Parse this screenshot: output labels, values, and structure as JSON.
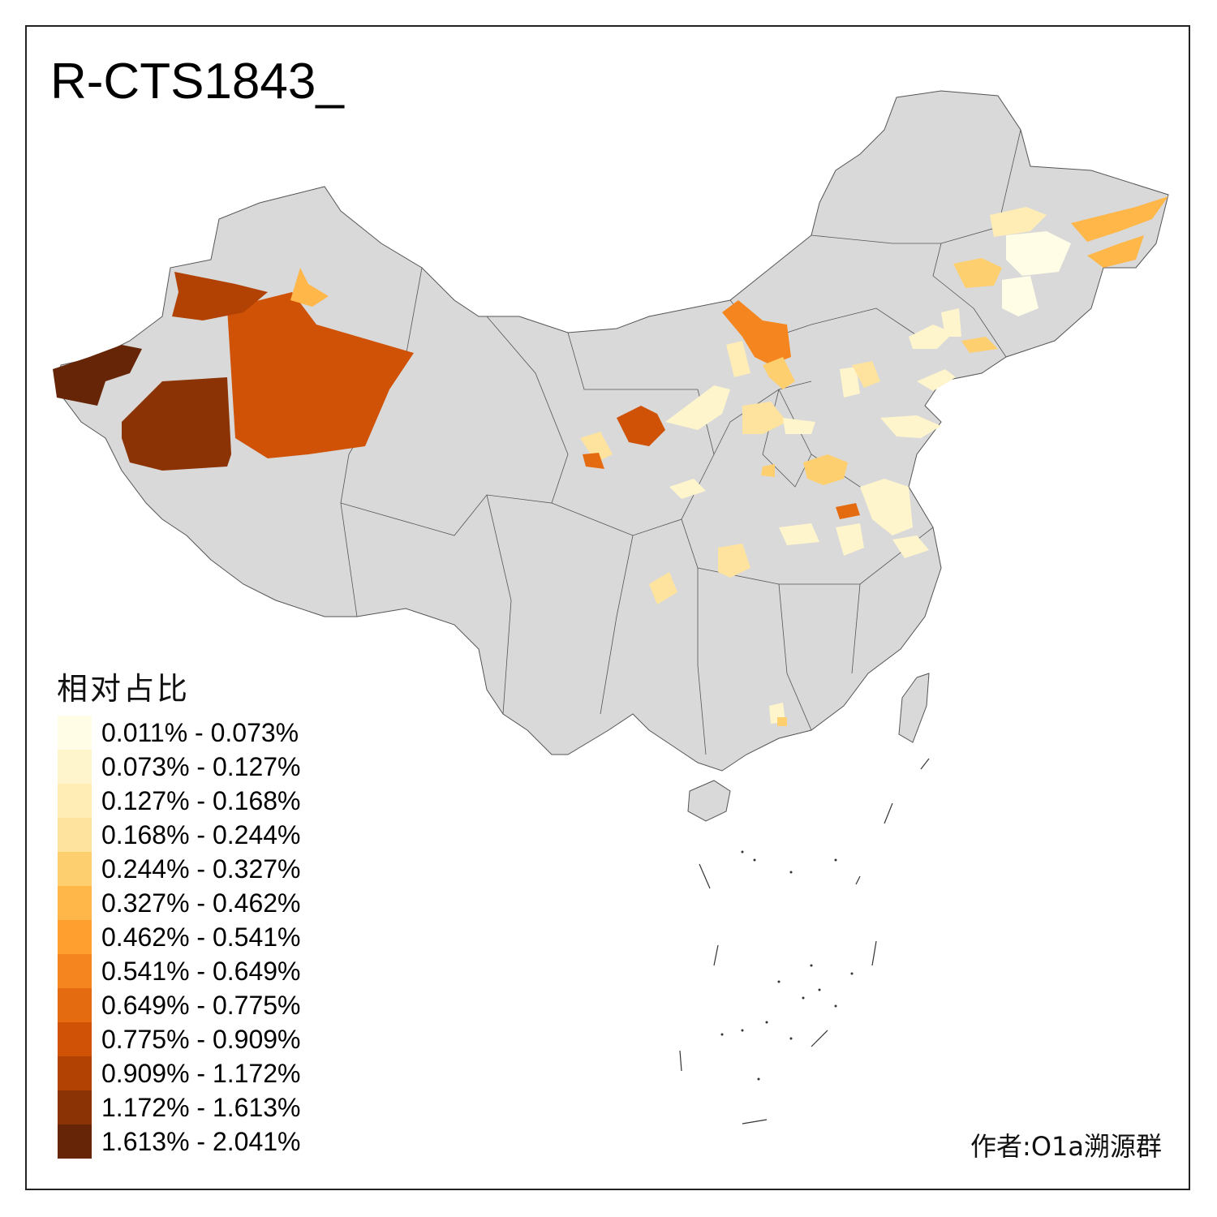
{
  "title": "R-CTS1843_",
  "legend": {
    "title": "相对占比",
    "items": [
      {
        "label": "0.011% - 0.073%",
        "color": "#FFFDE6"
      },
      {
        "label": "0.073% - 0.127%",
        "color": "#FFF5CC"
      },
      {
        "label": "0.127% - 0.168%",
        "color": "#FFEDB5"
      },
      {
        "label": "0.168% - 0.244%",
        "color": "#FEE39E"
      },
      {
        "label": "0.244% - 0.327%",
        "color": "#FECF6F"
      },
      {
        "label": "0.327% - 0.462%",
        "color": "#FEB748"
      },
      {
        "label": "0.462% - 0.541%",
        "color": "#FE9F30"
      },
      {
        "label": "0.541% - 0.649%",
        "color": "#F5861F"
      },
      {
        "label": "0.649% - 0.775%",
        "color": "#E56B10"
      },
      {
        "label": "0.775% - 0.909%",
        "color": "#CF5207"
      },
      {
        "label": "0.909% - 1.172%",
        "color": "#B14204"
      },
      {
        "label": "1.172% - 1.613%",
        "color": "#8C3305"
      },
      {
        "label": "1.613% - 2.041%",
        "color": "#662506"
      }
    ]
  },
  "author": "作者:O1a溯源群",
  "colors": {
    "land": "#D9D9D9",
    "boundary": "#555555"
  }
}
